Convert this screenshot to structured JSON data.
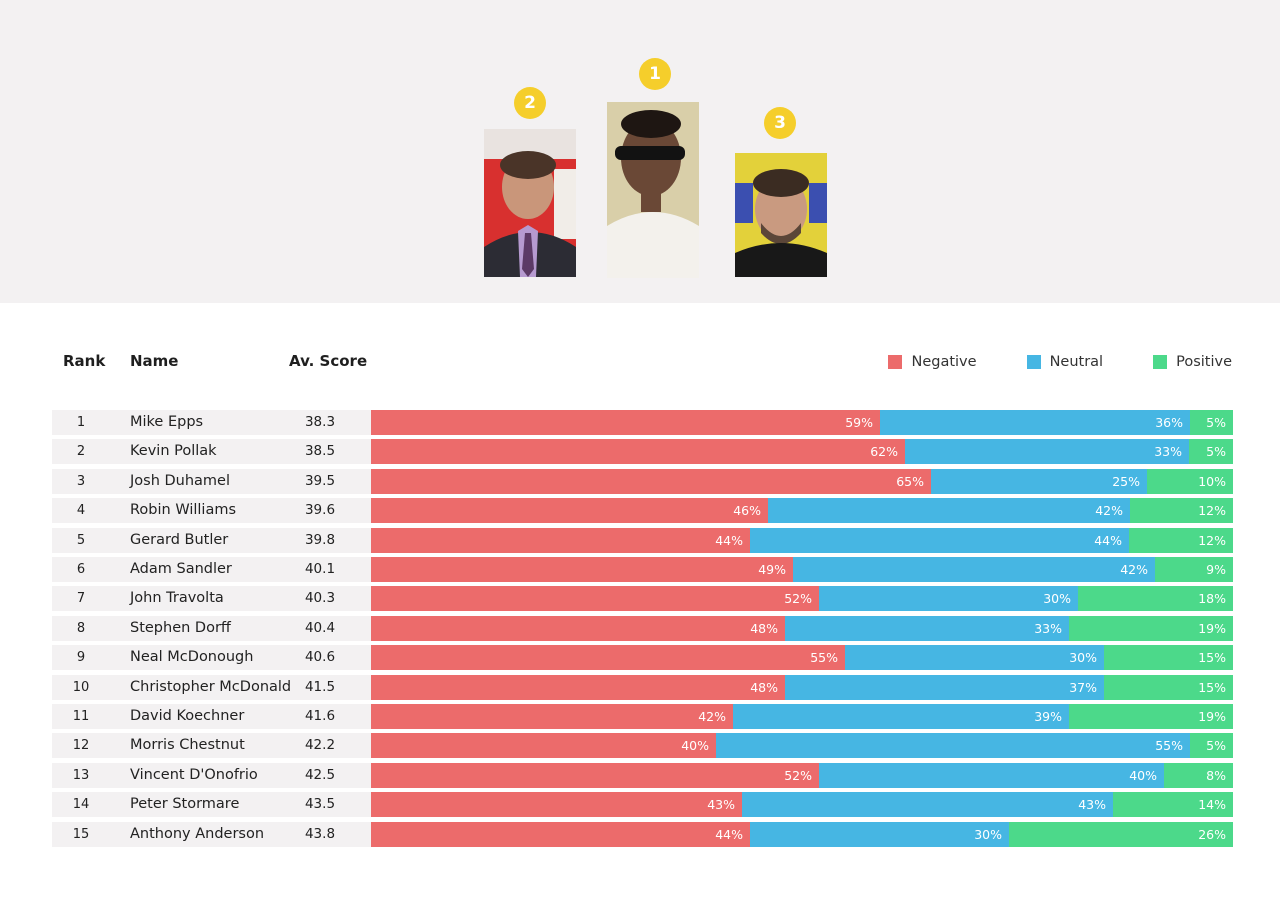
{
  "podium": [
    {
      "rank": "1",
      "name": "Mike Epps"
    },
    {
      "rank": "2",
      "name": "Kevin Pollak"
    },
    {
      "rank": "3",
      "name": "Josh Duhamel"
    }
  ],
  "table": {
    "headers": {
      "rank": "Rank",
      "name": "Name",
      "score": "Av. Score"
    }
  },
  "colors": {
    "negative": "#ec6b6b",
    "neutral": "#46b6e3",
    "positive": "#4cd98a",
    "badge": "#f5ce2b"
  },
  "chart_data": {
    "type": "bar",
    "stacked": "percent",
    "orientation": "horizontal",
    "legend": {
      "position": "top-right"
    },
    "series": [
      {
        "name": "Negative",
        "values": [
          59,
          62,
          65,
          46,
          44,
          49,
          52,
          48,
          55,
          48,
          42,
          40,
          52,
          43,
          44
        ]
      },
      {
        "name": "Neutral",
        "values": [
          36,
          33,
          25,
          42,
          44,
          42,
          30,
          33,
          30,
          37,
          39,
          55,
          40,
          43,
          30
        ]
      },
      {
        "name": "Positive",
        "values": [
          5,
          5,
          10,
          12,
          12,
          9,
          18,
          19,
          15,
          15,
          19,
          5,
          8,
          14,
          26
        ]
      }
    ],
    "rows": [
      {
        "rank": "1",
        "name": "Mike Epps",
        "score": "38.3"
      },
      {
        "rank": "2",
        "name": "Kevin Pollak",
        "score": "38.5"
      },
      {
        "rank": "3",
        "name": "Josh Duhamel",
        "score": "39.5"
      },
      {
        "rank": "4",
        "name": "Robin Williams",
        "score": "39.6"
      },
      {
        "rank": "5",
        "name": "Gerard Butler",
        "score": "39.8"
      },
      {
        "rank": "6",
        "name": "Adam Sandler",
        "score": "40.1"
      },
      {
        "rank": "7",
        "name": "John Travolta",
        "score": "40.3"
      },
      {
        "rank": "8",
        "name": "Stephen Dorff",
        "score": "40.4"
      },
      {
        "rank": "9",
        "name": "Neal McDonough",
        "score": "40.6"
      },
      {
        "rank": "10",
        "name": "Christopher McDonald",
        "score": "41.5"
      },
      {
        "rank": "11",
        "name": "David Koechner",
        "score": "41.6"
      },
      {
        "rank": "12",
        "name": "Morris Chestnut",
        "score": "42.2"
      },
      {
        "rank": "13",
        "name": "Vincent D'Onofrio",
        "score": "42.5"
      },
      {
        "rank": "14",
        "name": "Peter Stormare",
        "score": "43.5"
      },
      {
        "rank": "15",
        "name": "Anthony Anderson",
        "score": "43.8"
      }
    ]
  }
}
